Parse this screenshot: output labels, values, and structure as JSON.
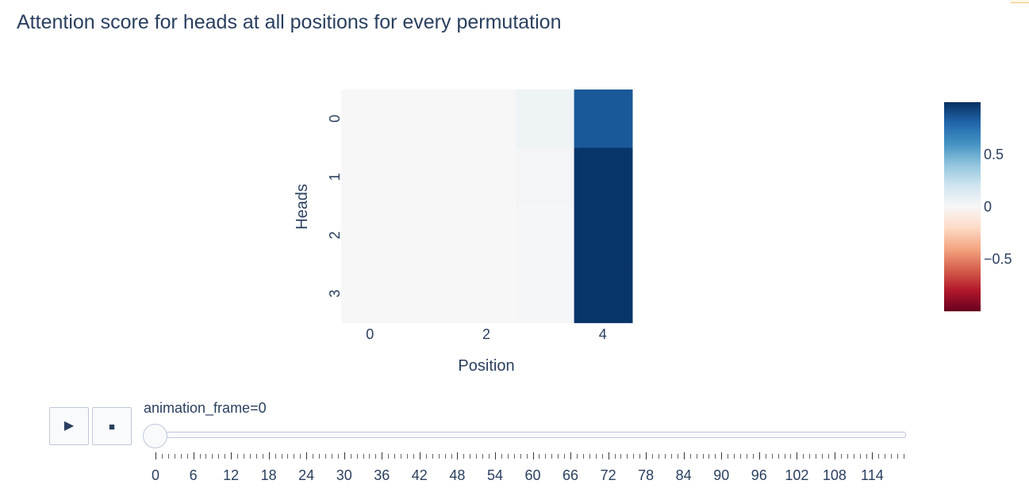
{
  "title": "Attention score for heads at all positions for every permutation",
  "chart_data": {
    "type": "heatmap",
    "title": "Attention score for heads at all positions for every permutation",
    "xlabel": "Position",
    "ylabel": "Heads",
    "x": [
      0,
      1,
      2,
      3,
      4
    ],
    "y": [
      0,
      1,
      2,
      3
    ],
    "x_tick_labels": [
      "0",
      "2",
      "4"
    ],
    "y_tick_labels": [
      "0",
      "1",
      "2",
      "3"
    ],
    "z": [
      [
        0.0,
        0.0,
        0.0,
        0.05,
        0.85
      ],
      [
        0.0,
        0.0,
        0.0,
        0.02,
        0.98
      ],
      [
        0.0,
        0.0,
        0.0,
        0.01,
        0.98
      ],
      [
        0.0,
        0.0,
        0.0,
        0.01,
        0.98
      ]
    ],
    "zrange": [
      -1,
      1
    ],
    "colorscale": "RdBu",
    "colorbar_ticks": [
      "0.5",
      "0",
      "−0.5"
    ],
    "colorbar_tick_values": [
      0.5,
      0,
      -0.5
    ]
  },
  "animation": {
    "play_icon": "▶",
    "stop_icon": "■",
    "frame_label": "animation_frame=0",
    "current_frame": 0,
    "frame_min": 0,
    "frame_max": 119,
    "tick_labels": [
      "0",
      "6",
      "12",
      "18",
      "24",
      "30",
      "36",
      "42",
      "48",
      "54",
      "60",
      "66",
      "72",
      "78",
      "84",
      "90",
      "96",
      "102",
      "108",
      "114"
    ]
  }
}
